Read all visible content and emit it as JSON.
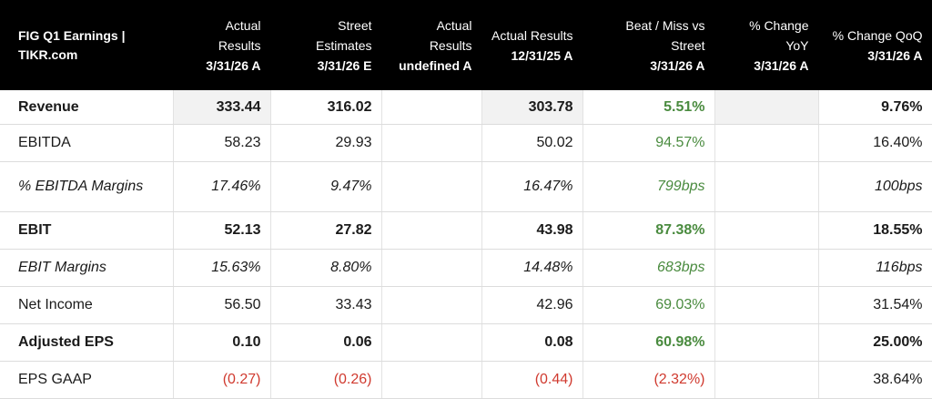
{
  "header": {
    "title": "FIG Q1 Earnings | TIKR.com",
    "columns": [
      {
        "label": "Actual Results",
        "date": "3/31/26 A"
      },
      {
        "label": "Street Estimates",
        "date": "3/31/26 E"
      },
      {
        "label": "Actual Results",
        "date": "undefined A"
      },
      {
        "label": "Actual Results",
        "date": "12/31/25 A"
      },
      {
        "label": "Beat / Miss vs Street",
        "date": "3/31/26 A"
      },
      {
        "label": "% Change YoY",
        "date": "3/31/26 A"
      },
      {
        "label": "% Change QoQ",
        "date": "3/31/26 A"
      }
    ]
  },
  "rows": [
    {
      "label": "Revenue",
      "values": [
        "333.44",
        "316.02",
        "",
        "303.78",
        "5.51%",
        "",
        "9.76%"
      ]
    },
    {
      "label": "EBITDA",
      "values": [
        "58.23",
        "29.93",
        "",
        "50.02",
        "94.57%",
        "",
        "16.40%"
      ]
    },
    {
      "label": "% EBITDA Margins",
      "values": [
        "17.46%",
        "9.47%",
        "",
        "16.47%",
        "799bps",
        "",
        "100bps"
      ]
    },
    {
      "label": "EBIT",
      "values": [
        "52.13",
        "27.82",
        "",
        "43.98",
        "87.38%",
        "",
        "18.55%"
      ]
    },
    {
      "label": "EBIT Margins",
      "values": [
        "15.63%",
        "8.80%",
        "",
        "14.48%",
        "683bps",
        "",
        "116bps"
      ]
    },
    {
      "label": "Net Income",
      "values": [
        "56.50",
        "33.43",
        "",
        "42.96",
        "69.03%",
        "",
        "31.54%"
      ]
    },
    {
      "label": "Adjusted EPS",
      "values": [
        "0.10",
        "0.06",
        "",
        "0.08",
        "60.98%",
        "",
        "25.00%"
      ]
    },
    {
      "label": "EPS GAAP",
      "values": [
        "(0.27)",
        "(0.26)",
        "",
        "(0.44)",
        "(2.32%)",
        "",
        "38.64%"
      ]
    }
  ],
  "colors": {
    "header_bg": "#000000",
    "positive": "#4a8b3f",
    "negative": "#d03a2f",
    "shaded_column": "#f2f2f2"
  }
}
